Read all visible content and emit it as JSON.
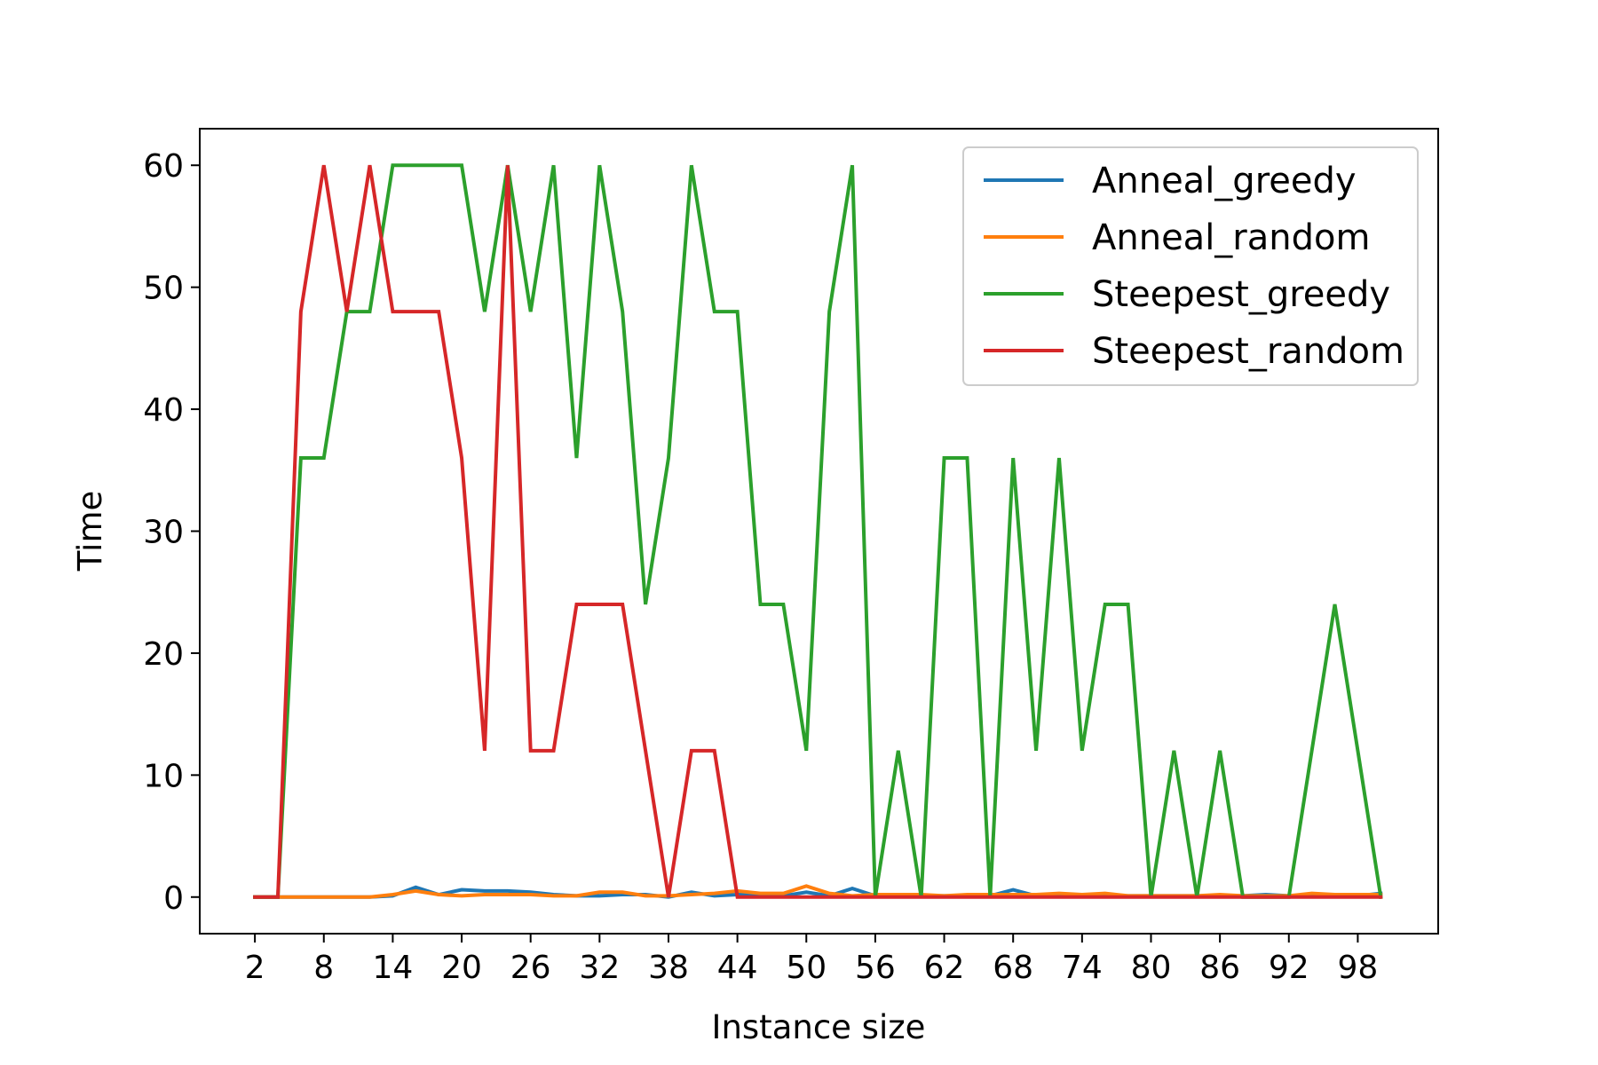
{
  "chart_data": {
    "type": "line",
    "title": "",
    "xlabel": "Instance size",
    "ylabel": "Time",
    "xlim": [
      -2.8,
      105
    ],
    "ylim": [
      -3,
      63
    ],
    "xticks": [
      2,
      8,
      14,
      20,
      26,
      32,
      38,
      44,
      50,
      56,
      62,
      68,
      74,
      80,
      86,
      92,
      98
    ],
    "yticks": [
      0,
      10,
      20,
      30,
      40,
      50,
      60
    ],
    "grid": false,
    "legend_position": "top-right",
    "x": [
      2,
      4,
      6,
      8,
      10,
      12,
      14,
      16,
      18,
      20,
      22,
      24,
      26,
      28,
      30,
      32,
      34,
      36,
      38,
      40,
      42,
      44,
      46,
      48,
      50,
      52,
      54,
      56,
      58,
      60,
      62,
      64,
      66,
      68,
      70,
      72,
      74,
      76,
      78,
      80,
      82,
      84,
      86,
      88,
      90,
      92,
      94,
      96,
      98,
      100
    ],
    "series": [
      {
        "name": "Anneal_greedy",
        "color": "#1f77b4",
        "values": [
          0,
          0,
          0,
          0,
          0,
          0,
          0.1,
          0.8,
          0.2,
          0.6,
          0.5,
          0.5,
          0.4,
          0.2,
          0.1,
          0.1,
          0.2,
          0.2,
          0,
          0.4,
          0.1,
          0.2,
          0.2,
          0.1,
          0.4,
          0.1,
          0.7,
          0.1,
          0.1,
          0.1,
          0.1,
          0.1,
          0.1,
          0.6,
          0.1,
          0.1,
          0.1,
          0.1,
          0.1,
          0.1,
          0.1,
          0.1,
          0.1,
          0.1,
          0.2,
          0.1,
          0.1,
          0.1,
          0.1,
          0.3
        ]
      },
      {
        "name": "Anneal_random",
        "color": "#ff7f0e",
        "values": [
          0,
          0,
          0,
          0,
          0,
          0,
          0.2,
          0.5,
          0.2,
          0.1,
          0.2,
          0.2,
          0.2,
          0.1,
          0.1,
          0.4,
          0.4,
          0.1,
          0.1,
          0.2,
          0.3,
          0.5,
          0.3,
          0.3,
          0.9,
          0.3,
          0.1,
          0.2,
          0.2,
          0.2,
          0.1,
          0.2,
          0.2,
          0.2,
          0.2,
          0.3,
          0.2,
          0.3,
          0.1,
          0.1,
          0.1,
          0.1,
          0.2,
          0.1,
          0.1,
          0.1,
          0.3,
          0.2,
          0.2,
          0.2
        ]
      },
      {
        "name": "Steepest_greedy",
        "color": "#2ca02c",
        "values": [
          0,
          0,
          36,
          36,
          48,
          48,
          60,
          60,
          60,
          60,
          48,
          60,
          48,
          60,
          36,
          60,
          48,
          24,
          36,
          60,
          48,
          48,
          24,
          24,
          12,
          48,
          60,
          0,
          12,
          0,
          36,
          36,
          0,
          36,
          12,
          36,
          12,
          24,
          24,
          0,
          12,
          0,
          12,
          0,
          0,
          0,
          12,
          24,
          12,
          0
        ]
      },
      {
        "name": "Steepest_random",
        "color": "#d62728",
        "values": [
          0,
          0,
          48,
          60,
          48,
          60,
          48,
          48,
          48,
          36,
          12,
          60,
          12,
          12,
          24,
          24,
          24,
          12,
          0,
          12,
          12,
          0,
          0,
          0,
          0,
          0,
          0,
          0,
          0,
          0,
          0,
          0,
          0,
          0,
          0,
          0,
          0,
          0,
          0,
          0,
          0,
          0,
          0,
          0,
          0,
          0,
          0,
          0,
          0,
          0
        ]
      }
    ]
  }
}
